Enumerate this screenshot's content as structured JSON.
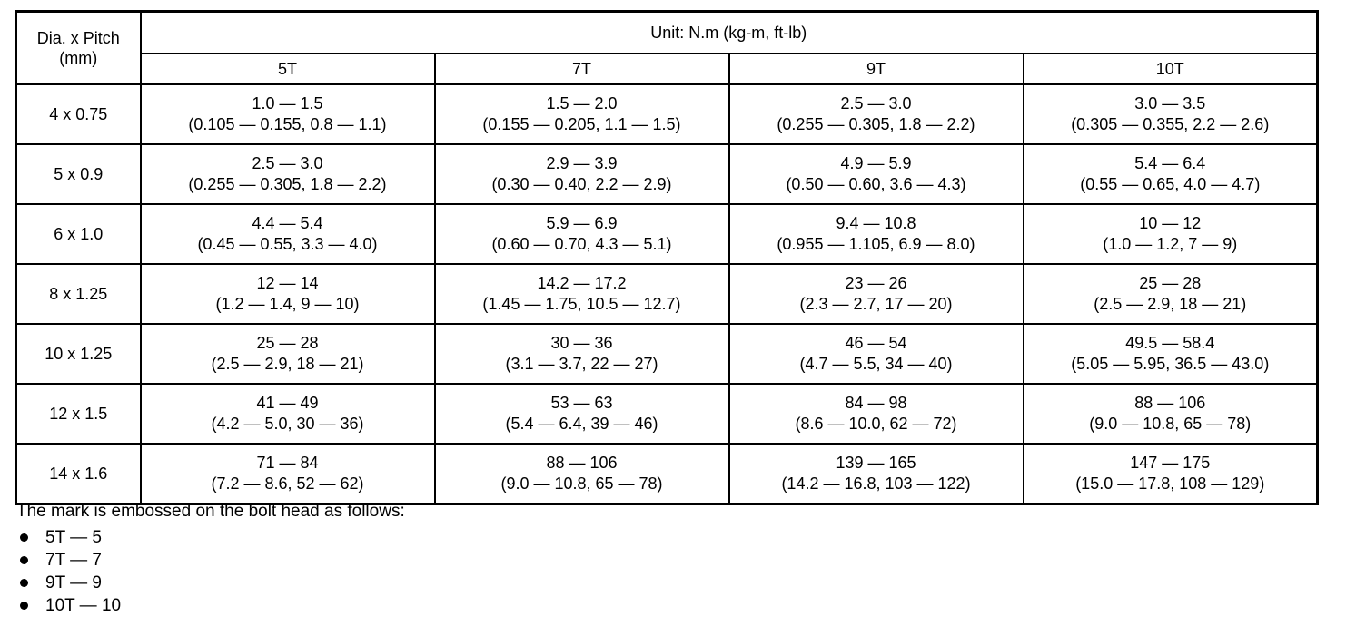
{
  "table": {
    "corner_header_line1": "Dia. x Pitch",
    "corner_header_line2": "(mm)",
    "unit_label": "Unit: N.m (kg-m, ft-lb)",
    "grade_headers": [
      "5T",
      "7T",
      "9T",
      "10T"
    ],
    "rows": [
      {
        "size": "4 x 0.75",
        "cells": [
          {
            "nm": "1.0 — 1.5",
            "sub": "(0.105 — 0.155, 0.8 — 1.1)"
          },
          {
            "nm": "1.5 — 2.0",
            "sub": "(0.155 — 0.205, 1.1 — 1.5)"
          },
          {
            "nm": "2.5 — 3.0",
            "sub": "(0.255 — 0.305, 1.8 — 2.2)"
          },
          {
            "nm": "3.0 — 3.5",
            "sub": "(0.305 — 0.355, 2.2 — 2.6)"
          }
        ]
      },
      {
        "size": "5 x 0.9",
        "cells": [
          {
            "nm": "2.5 — 3.0",
            "sub": "(0.255 — 0.305, 1.8 — 2.2)"
          },
          {
            "nm": "2.9 — 3.9",
            "sub": "(0.30 — 0.40, 2.2 — 2.9)"
          },
          {
            "nm": "4.9 — 5.9",
            "sub": "(0.50 — 0.60, 3.6 — 4.3)"
          },
          {
            "nm": "5.4 — 6.4",
            "sub": "(0.55 — 0.65, 4.0 — 4.7)"
          }
        ]
      },
      {
        "size": "6 x 1.0",
        "cells": [
          {
            "nm": "4.4 — 5.4",
            "sub": "(0.45 — 0.55, 3.3 — 4.0)"
          },
          {
            "nm": "5.9 — 6.9",
            "sub": "(0.60 — 0.70, 4.3 — 5.1)"
          },
          {
            "nm": "9.4 — 10.8",
            "sub": "(0.955 — 1.105, 6.9 — 8.0)"
          },
          {
            "nm": "10 — 12",
            "sub": "(1.0 — 1.2, 7 — 9)"
          }
        ]
      },
      {
        "size": "8 x 1.25",
        "cells": [
          {
            "nm": "12 — 14",
            "sub": "(1.2 — 1.4, 9 — 10)"
          },
          {
            "nm": "14.2 — 17.2",
            "sub": "(1.45 — 1.75, 10.5 — 12.7)"
          },
          {
            "nm": "23 — 26",
            "sub": "(2.3 — 2.7, 17 — 20)"
          },
          {
            "nm": "25 — 28",
            "sub": "(2.5 — 2.9, 18 — 21)"
          }
        ]
      },
      {
        "size": "10 x 1.25",
        "cells": [
          {
            "nm": "25 — 28",
            "sub": "(2.5 — 2.9, 18 — 21)"
          },
          {
            "nm": "30 — 36",
            "sub": "(3.1 — 3.7, 22 — 27)"
          },
          {
            "nm": "46 — 54",
            "sub": "(4.7 — 5.5, 34 — 40)"
          },
          {
            "nm": "49.5 — 58.4",
            "sub": "(5.05 — 5.95, 36.5 — 43.0)"
          }
        ]
      },
      {
        "size": "12 x 1.5",
        "cells": [
          {
            "nm": "41 — 49",
            "sub": "(4.2 — 5.0, 30 — 36)"
          },
          {
            "nm": "53 — 63",
            "sub": "(5.4 — 6.4, 39 — 46)"
          },
          {
            "nm": "84 — 98",
            "sub": "(8.6 — 10.0, 62 — 72)"
          },
          {
            "nm": "88 — 106",
            "sub": "(9.0 — 10.8, 65 — 78)"
          }
        ]
      },
      {
        "size": "14 x 1.6",
        "cells": [
          {
            "nm": "71 — 84",
            "sub": "(7.2 — 8.6, 52 — 62)"
          },
          {
            "nm": "88 — 106",
            "sub": "(9.0 — 10.8, 65 — 78)"
          },
          {
            "nm": "139 — 165",
            "sub": "(14.2 — 16.8, 103 — 122)"
          },
          {
            "nm": "147 — 175",
            "sub": "(15.0 — 17.8, 108 — 129)"
          }
        ]
      }
    ]
  },
  "footnote": {
    "intro": "The mark is embossed on the bolt head as follows:",
    "items": [
      "5T — 5",
      "7T — 7",
      "9T — 9",
      "10T — 10"
    ]
  }
}
